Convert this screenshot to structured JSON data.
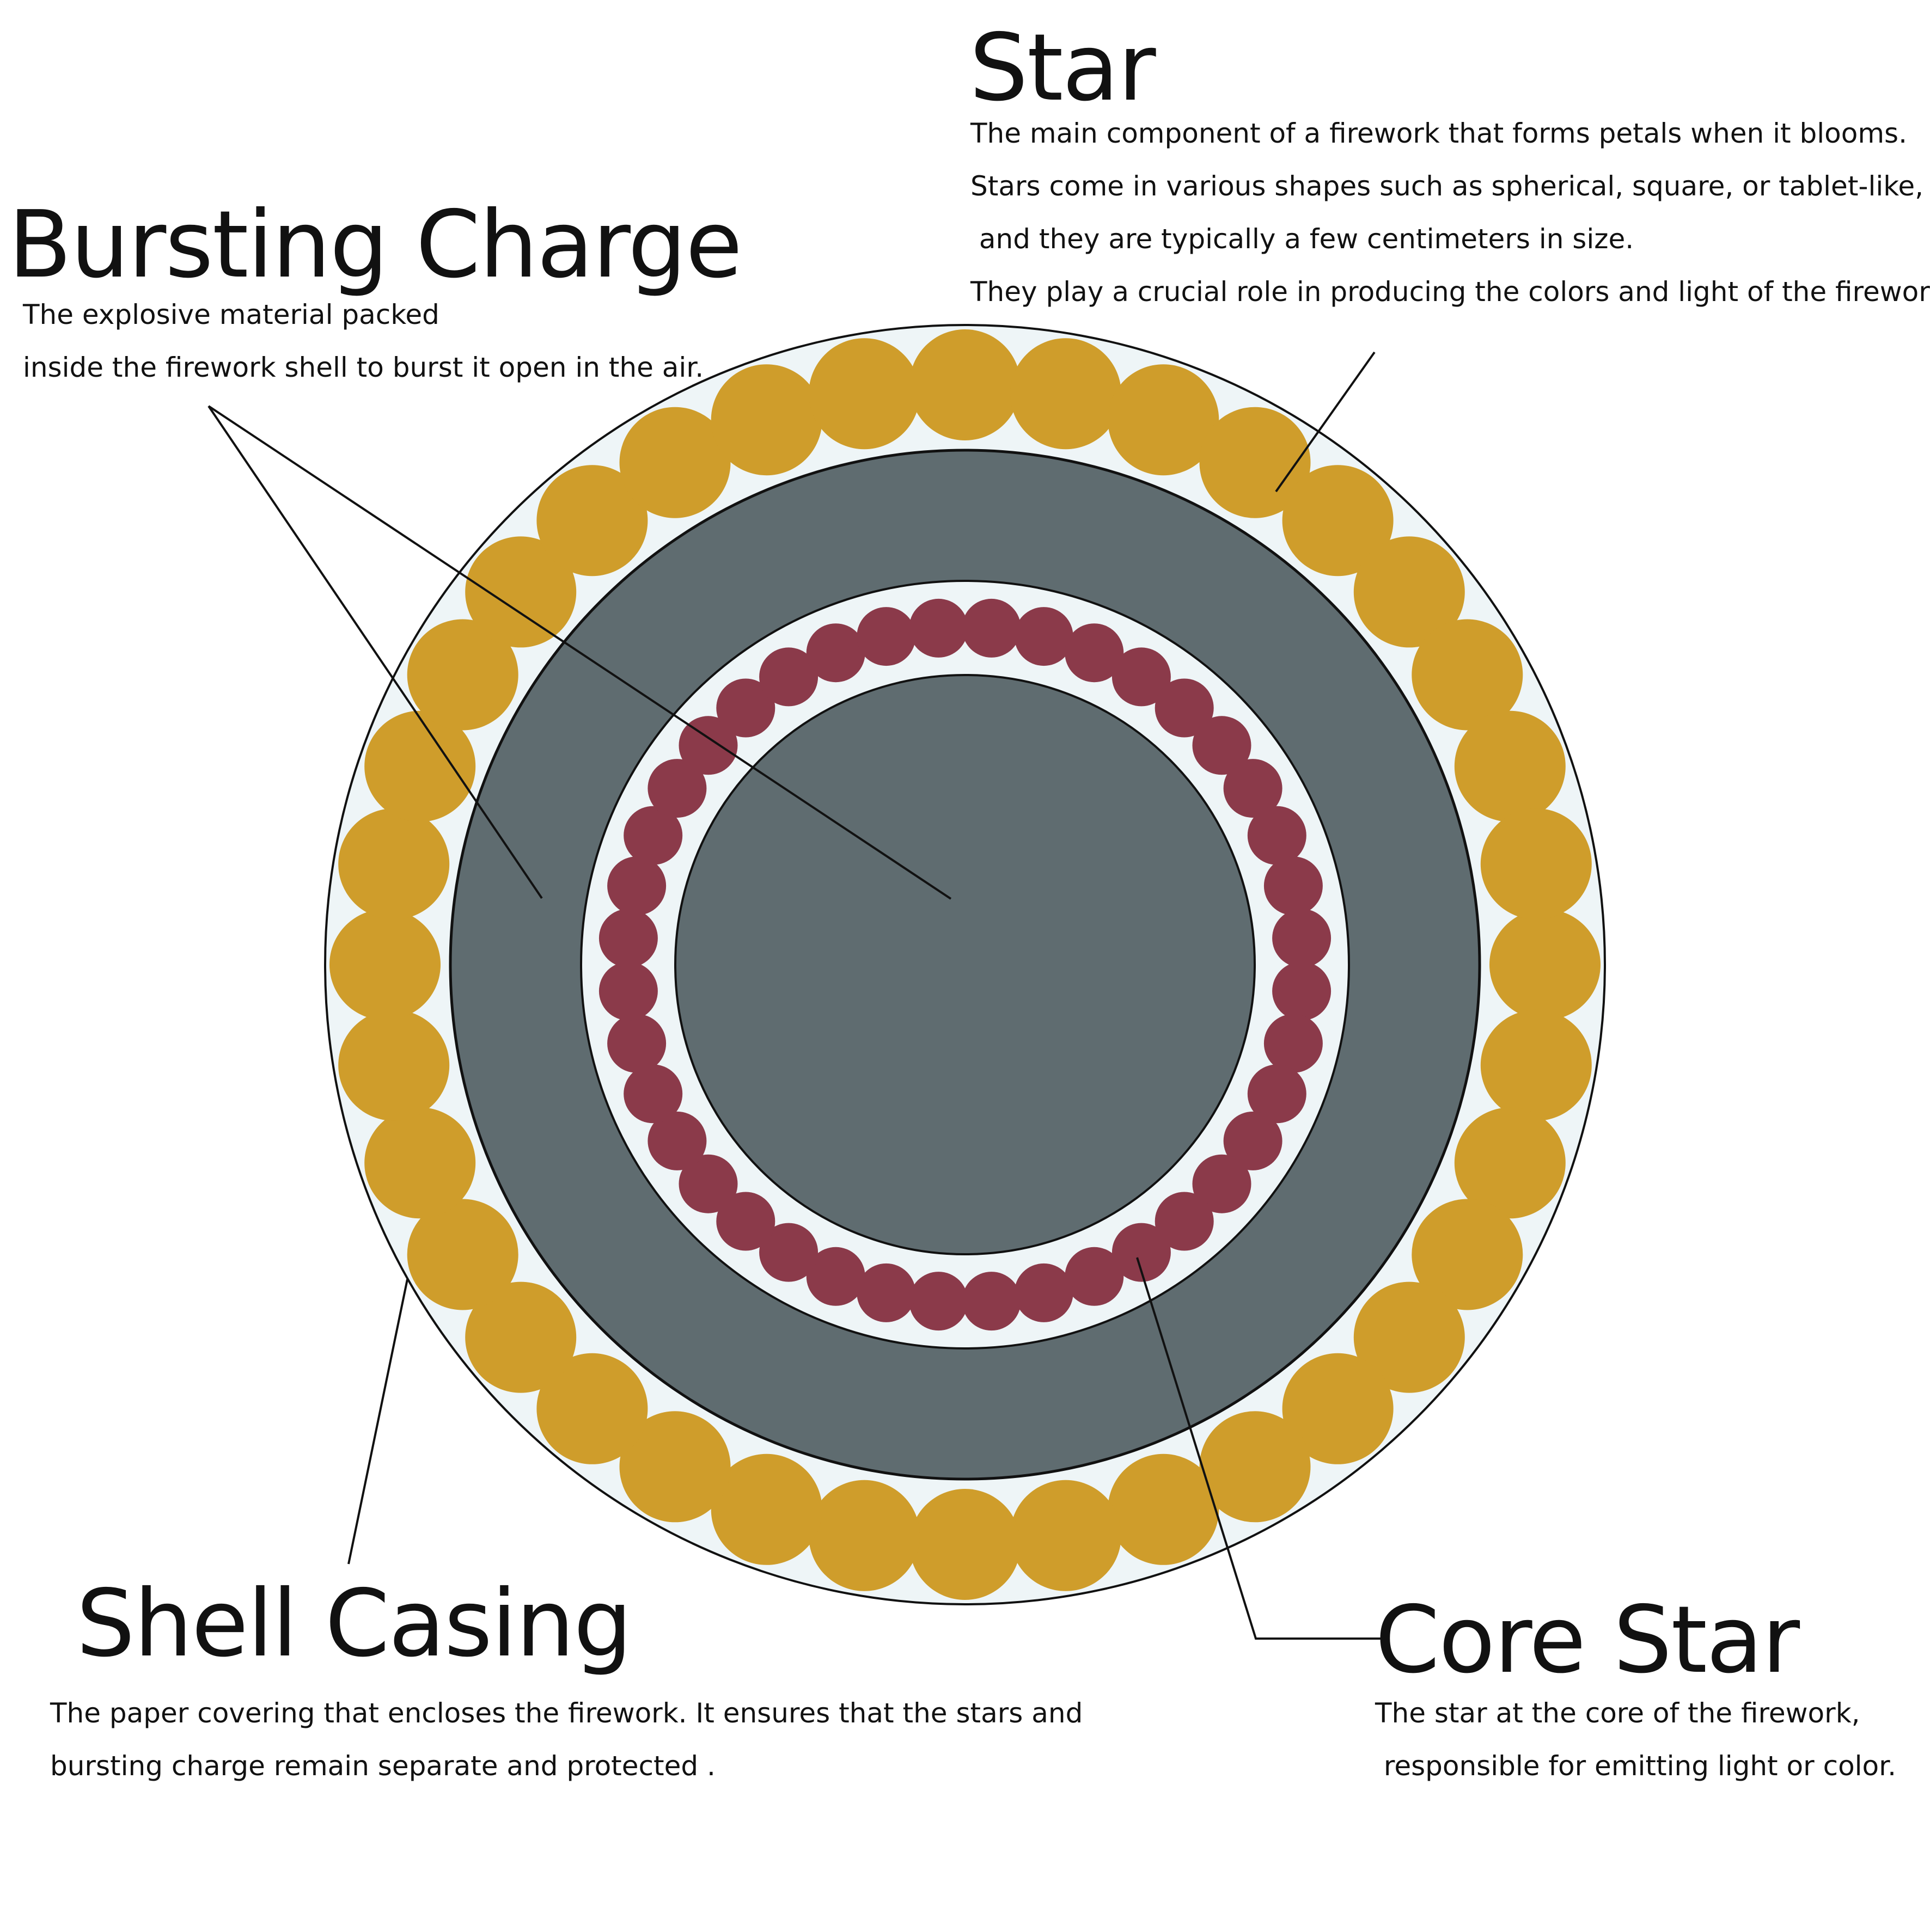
{
  "labels": {
    "star": {
      "title": "Star",
      "lines": [
        "The main component of a firework that forms petals when it blooms.",
        "Stars come in various shapes such as spherical, square, or tablet-like,",
        " and they are typically a few centimeters in size.",
        "They play a crucial role in producing the colors and light of the firework."
      ]
    },
    "bursting_charge": {
      "title": "Bursting Charge",
      "lines": [
        "The explosive material packed",
        "inside the firework shell to burst it open in the air."
      ]
    },
    "shell_casing": {
      "title": "Shell Casing",
      "lines": [
        "The paper covering that encloses the firework. It ensures that the stars and",
        "bursting charge remain separate and protected ."
      ]
    },
    "core_star": {
      "title": "Core Star",
      "lines": [
        "The star at the core of the firework,",
        " responsible for emitting light or color."
      ]
    }
  },
  "diagram": {
    "outer_star_count": 36,
    "core_star_count": 40,
    "colors": {
      "shell_fill": "#eef5f7",
      "outer_star": "#cf9d2b",
      "bursting_charge": "#5f6c70",
      "inner_ring_fill": "#eef5f7",
      "core_star": "#8b3a4a",
      "outline": "#111111"
    }
  }
}
